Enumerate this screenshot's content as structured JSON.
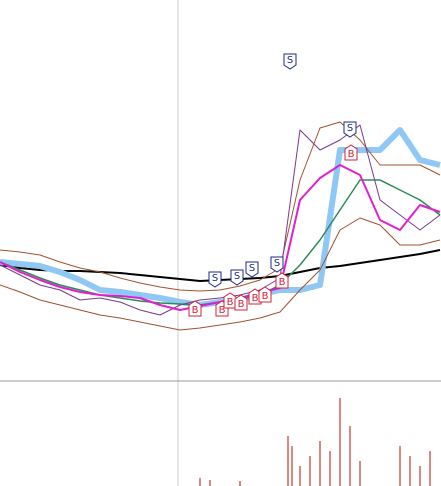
{
  "chart_data": {
    "type": "line",
    "x": [
      0,
      20,
      40,
      60,
      80,
      100,
      120,
      140,
      160,
      180,
      200,
      220,
      240,
      260,
      280,
      300,
      320,
      340,
      360,
      380,
      400,
      420,
      440
    ],
    "xlim": [
      0,
      441
    ],
    "ylim": [
      0,
      380
    ],
    "series": [
      {
        "color": "#000000",
        "width": 2,
        "values": [
          115,
          112,
          110,
          109,
          109,
          108,
          107,
          105,
          103,
          101,
          99,
          100,
          101,
          102,
          104,
          108,
          112,
          114,
          117,
          120,
          123,
          126,
          130
        ]
      },
      {
        "color": "#8fc8f5",
        "width": 6,
        "values": [
          118,
          116,
          114,
          108,
          100,
          90,
          88,
          85,
          82,
          78,
          75,
          78,
          80,
          86,
          90,
          90,
          95,
          230,
          230,
          230,
          250,
          220,
          215
        ]
      },
      {
        "color": "#a0522d",
        "width": 1,
        "values": [
          130,
          128,
          125,
          118,
          112,
          108,
          102,
          97,
          93,
          90,
          89,
          90,
          94,
          100,
          112,
          200,
          252,
          258,
          240,
          215,
          215,
          215,
          205
        ]
      },
      {
        "color": "#a0522d",
        "width": 1,
        "values": [
          95,
          88,
          80,
          75,
          70,
          65,
          62,
          58,
          54,
          50,
          52,
          55,
          58,
          62,
          68,
          90,
          110,
          150,
          162,
          155,
          135,
          135,
          140
        ]
      },
      {
        "color": "#2e8b57",
        "width": 1.5,
        "values": [
          118,
          110,
          102,
          95,
          90,
          85,
          82,
          79,
          77,
          76,
          75,
          78,
          81,
          85,
          95,
          115,
          140,
          170,
          200,
          200,
          190,
          180,
          165
        ]
      },
      {
        "color": "#7a3a8a",
        "width": 1,
        "values": [
          115,
          105,
          95,
          90,
          80,
          82,
          78,
          70,
          65,
          75,
          80,
          82,
          85,
          90,
          102,
          250,
          230,
          240,
          255,
          180,
          165,
          150,
          165
        ]
      },
      {
        "color": "#e020d0",
        "width": 2,
        "values": [
          118,
          108,
          100,
          93,
          88,
          85,
          84,
          82,
          75,
          70,
          74,
          78,
          82,
          87,
          92,
          180,
          202,
          215,
          205,
          160,
          150,
          175,
          168
        ]
      }
    ],
    "signals": [
      {
        "label": "S",
        "x": 290,
        "y": 318
      },
      {
        "label": "S",
        "x": 215,
        "y": 100
      },
      {
        "label": "S",
        "x": 237,
        "y": 102
      },
      {
        "label": "S",
        "x": 252,
        "y": 110
      },
      {
        "label": "S",
        "x": 277,
        "y": 115
      },
      {
        "label": "S",
        "x": 350,
        "y": 250
      },
      {
        "label": "B",
        "x": 195,
        "y": 72
      },
      {
        "label": "B",
        "x": 222,
        "y": 72
      },
      {
        "label": "B",
        "x": 230,
        "y": 80
      },
      {
        "label": "B",
        "x": 241,
        "y": 78
      },
      {
        "label": "B",
        "x": 255,
        "y": 84
      },
      {
        "label": "B",
        "x": 265,
        "y": 86
      },
      {
        "label": "B",
        "x": 282,
        "y": 100
      },
      {
        "label": "B",
        "x": 351,
        "y": 228
      }
    ],
    "volume": {
      "color": "#c0392b",
      "ylim": [
        0,
        104
      ],
      "x": [
        200,
        210,
        240,
        288,
        292,
        300,
        310,
        320,
        330,
        340,
        350,
        360,
        400,
        410,
        420,
        430
      ],
      "values": [
        8,
        6,
        5,
        50,
        40,
        20,
        30,
        45,
        35,
        88,
        60,
        25,
        40,
        30,
        20,
        35
      ]
    }
  }
}
